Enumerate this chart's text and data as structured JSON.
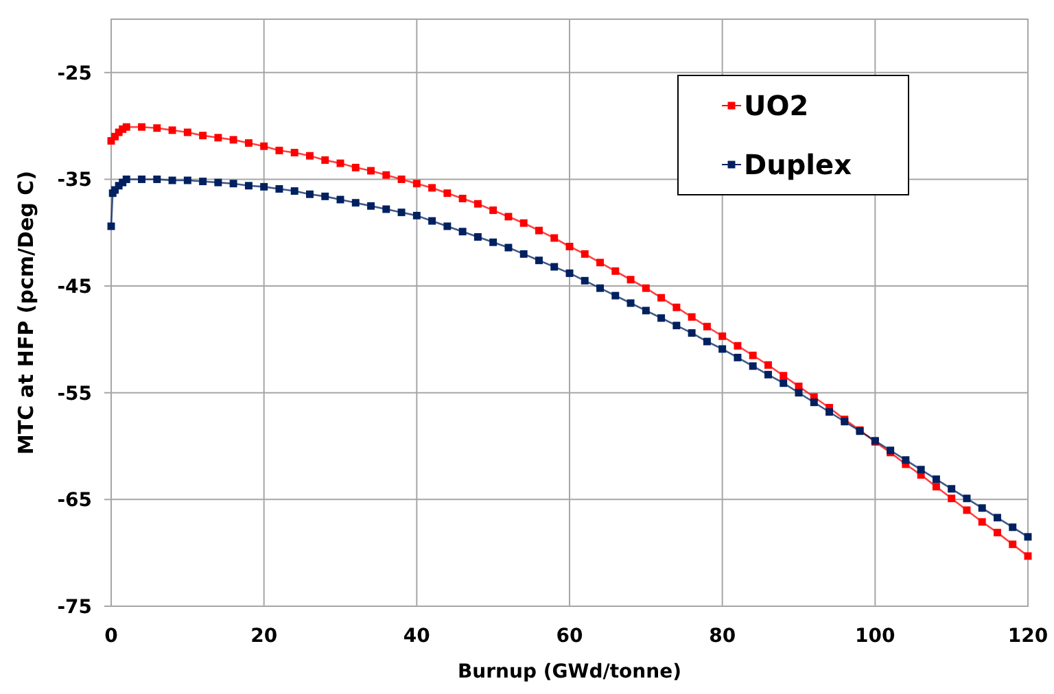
{
  "chart_data": {
    "type": "line",
    "xlabel": "Burnup  (GWd/tonne)",
    "ylabel": "MTC  at HFP  (pcm/Deg C)",
    "xlim": [
      0,
      120
    ],
    "xticks": [
      0,
      20,
      40,
      60,
      80,
      100,
      120
    ],
    "ylim": [
      -75,
      -20
    ],
    "yticks": [
      -25,
      -35,
      -45,
      -55,
      -65,
      -75
    ],
    "grid": true,
    "legend": "top right",
    "marker": "square",
    "line_style": "solid",
    "series": [
      {
        "name": "UO2",
        "color": "#ff0000",
        "x": [
          0,
          0.5,
          1,
          1.5,
          2,
          4,
          6,
          8,
          10,
          12,
          14,
          16,
          18,
          20,
          22,
          24,
          26,
          28,
          30,
          32,
          34,
          36,
          38,
          40,
          42,
          44,
          46,
          48,
          50,
          52,
          54,
          56,
          58,
          60,
          62,
          64,
          66,
          68,
          70,
          72,
          74,
          76,
          78,
          80,
          82,
          84,
          86,
          88,
          90,
          92,
          94,
          96,
          98,
          100,
          102,
          104,
          106,
          108,
          110,
          112,
          114,
          116,
          118,
          120
        ],
        "values": [
          -31.4,
          -31.0,
          -30.6,
          -30.3,
          -30.1,
          -30.1,
          -30.2,
          -30.4,
          -30.6,
          -30.9,
          -31.1,
          -31.3,
          -31.6,
          -31.9,
          -32.3,
          -32.5,
          -32.8,
          -33.2,
          -33.5,
          -33.9,
          -34.2,
          -34.6,
          -35.0,
          -35.4,
          -35.8,
          -36.3,
          -36.8,
          -37.3,
          -37.9,
          -38.5,
          -39.1,
          -39.8,
          -40.5,
          -41.3,
          -42.0,
          -42.8,
          -43.6,
          -44.4,
          -45.2,
          -46.1,
          -47.0,
          -47.9,
          -48.8,
          -49.7,
          -50.6,
          -51.5,
          -52.4,
          -53.4,
          -54.4,
          -55.4,
          -56.4,
          -57.5,
          -58.5,
          -59.6,
          -60.6,
          -61.7,
          -62.7,
          -63.8,
          -64.9,
          -66.0,
          -67.1,
          -68.1,
          -69.2,
          -70.3
        ]
      },
      {
        "name": "Duplex",
        "color": "#002060",
        "x": [
          0,
          0.2,
          0.5,
          1,
          1.5,
          2,
          4,
          6,
          8,
          10,
          12,
          14,
          16,
          18,
          20,
          22,
          24,
          26,
          28,
          30,
          32,
          34,
          36,
          38,
          40,
          42,
          44,
          46,
          48,
          50,
          52,
          54,
          56,
          58,
          60,
          62,
          64,
          66,
          68,
          70,
          72,
          74,
          76,
          78,
          80,
          82,
          84,
          86,
          88,
          90,
          92,
          94,
          96,
          98,
          100,
          102,
          104,
          106,
          108,
          110,
          112,
          114,
          116,
          118,
          120
        ],
        "values": [
          -39.4,
          -36.3,
          -36.0,
          -35.6,
          -35.3,
          -35.0,
          -35.0,
          -35.0,
          -35.1,
          -35.1,
          -35.2,
          -35.3,
          -35.4,
          -35.6,
          -35.7,
          -35.9,
          -36.1,
          -36.4,
          -36.6,
          -36.9,
          -37.2,
          -37.5,
          -37.8,
          -38.1,
          -38.4,
          -38.9,
          -39.4,
          -39.9,
          -40.4,
          -40.9,
          -41.4,
          -42.0,
          -42.6,
          -43.2,
          -43.8,
          -44.5,
          -45.2,
          -45.9,
          -46.6,
          -47.3,
          -48.0,
          -48.7,
          -49.4,
          -50.2,
          -50.9,
          -51.7,
          -52.5,
          -53.3,
          -54.1,
          -55.0,
          -55.9,
          -56.8,
          -57.7,
          -58.6,
          -59.5,
          -60.4,
          -61.3,
          -62.2,
          -63.1,
          -64.0,
          -64.9,
          -65.8,
          -66.7,
          -67.6,
          -68.5
        ]
      }
    ]
  }
}
